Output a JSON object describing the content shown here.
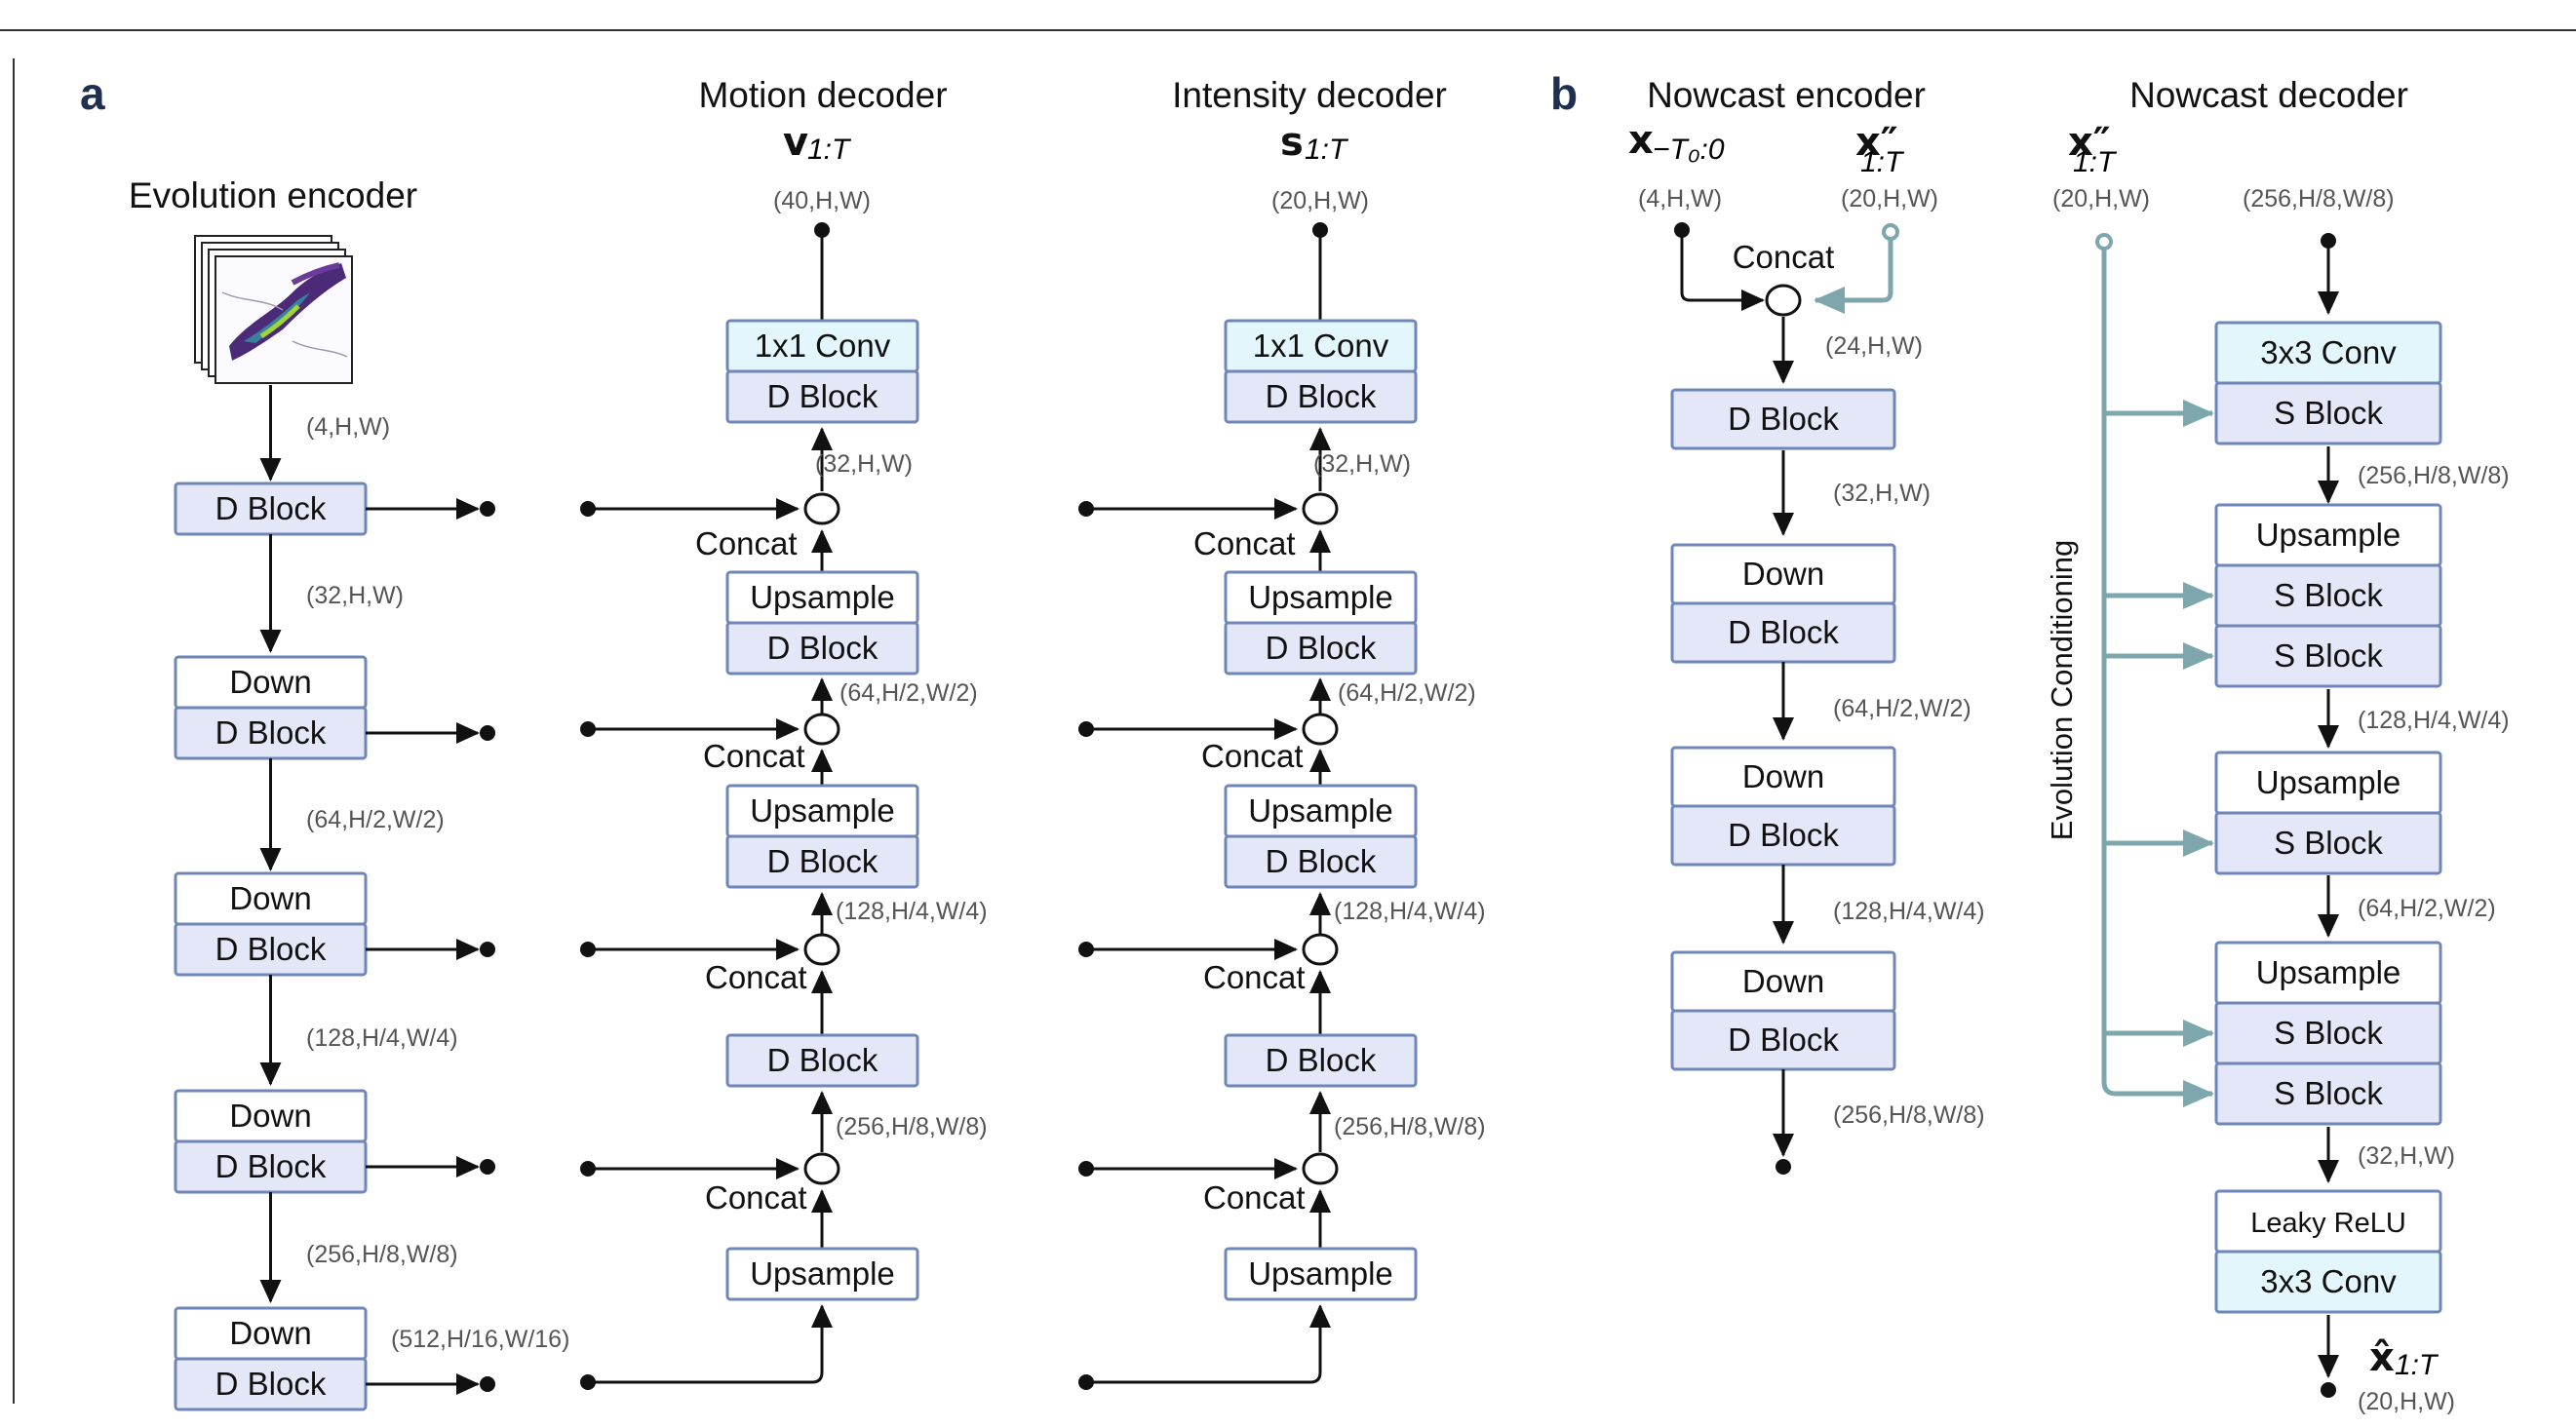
{
  "panels": {
    "a": "a",
    "b": "b"
  },
  "titles": {
    "evolution_encoder": "Evolution encoder",
    "motion_decoder": "Motion decoder",
    "intensity_decoder": "Intensity decoder",
    "nowcast_encoder": "Nowcast encoder",
    "nowcast_decoder": "Nowcast decoder"
  },
  "symbols": {
    "motion": "v",
    "motion_sub": "1:T",
    "intensity": "s",
    "intensity_sub": "1:T",
    "x_past": "x",
    "x_past_sub": "−T₀:0",
    "x_evo": "x″",
    "x_evo_sub": "1:T",
    "x_hat": "x̂",
    "x_hat_sub": "1:T"
  },
  "labels": {
    "block_d": "D Block",
    "block_s": "S Block",
    "down": "Down",
    "upsample": "Upsample",
    "conv1x1": "1x1 Conv",
    "conv3x3": "3x3 Conv",
    "leaky": "Leaky ReLU",
    "concat": "Concat",
    "evolution_conditioning": "Evolution Conditioning"
  },
  "dims": {
    "enc_in": "(4,H,W)",
    "enc_1": "(32,H,W)",
    "enc_2": "(64,H/2,W/2)",
    "enc_3": "(128,H/4,W/4)",
    "enc_4": "(256,H/8,W/8)",
    "enc_5": "(512,H/16,W/16)",
    "motion_out": "(40,H,W)",
    "intensity_out": "(20,H,W)",
    "dec_32": "(32,H,W)",
    "dec_64": "(64,H/2,W/2)",
    "dec_128": "(128,H/4,W/4)",
    "dec_256": "(256,H/8,W/8)",
    "ne_in_x": "(4,H,W)",
    "ne_in_evo": "(20,H,W)",
    "ne_24": "(24,H,W)",
    "ne_32": "(32,H,W)",
    "ne_64": "(64,H/2,W/2)",
    "ne_128": "(128,H/4,W/4)",
    "ne_256": "(256,H/8,W/8)",
    "nd_evo": "(20,H,W)",
    "nd_in": "(256,H/8,W/8)",
    "nd_256": "(256,H/8,W/8)",
    "nd_128": "(128,H/4,W/4)",
    "nd_64": "(64,H/2,W/2)",
    "nd_32": "(32,H,W)",
    "nd_out": "(20,H,W)"
  },
  "colors": {
    "block_fill": "#e4e7f8",
    "block_stroke": "#6f86b8",
    "conv_fill": "#e3f6fb",
    "arrow": "#111111",
    "conditioning": "#7ea7ad"
  }
}
